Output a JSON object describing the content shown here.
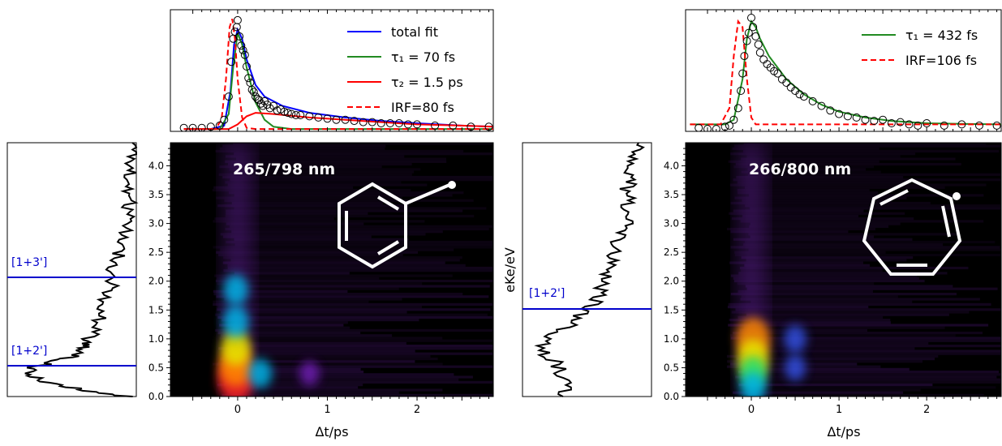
{
  "panels": [
    {
      "id": "left",
      "map_label": "265/798 nm",
      "xlabel": "Δt/ps",
      "ylabel": "",
      "molecule_icon": "benzyl-radical-structure",
      "legend": [
        "total fit",
        "τ₁ = 70 fs",
        "τ₂ = 1.5 ps",
        "IRF=80 fs"
      ],
      "marker_labels": [
        "[1+3']",
        "[1+2']"
      ]
    },
    {
      "id": "right",
      "map_label": "266/800 nm",
      "xlabel": "Δt/ps",
      "ylabel": "eKe/eV",
      "molecule_icon": "tropyl-radical-structure",
      "legend": [
        "τ₁ = 432 fs",
        "IRF=106 fs"
      ],
      "marker_labels": [
        "[1+2']"
      ]
    }
  ],
  "colors": {
    "total_fit": "#0000ff",
    "tau1": "#228b22",
    "tau2": "#ff0000",
    "irf": "#ff0000",
    "marker_line": "#0000cc",
    "map_background": "#000000"
  },
  "chart_data": [
    {
      "type": "line",
      "title": "",
      "xlabel": "",
      "ylabel": "",
      "xlim": [
        -0.75,
        2.85
      ],
      "ylim": [
        0,
        1.05
      ],
      "series": [
        {
          "name": "total fit",
          "x": [
            -0.6,
            -0.3,
            -0.15,
            -0.08,
            -0.04,
            0.0,
            0.05,
            0.1,
            0.2,
            0.3,
            0.5,
            0.8,
            1.2,
            1.6,
            2.0,
            2.5,
            2.85
          ],
          "y": [
            0.02,
            0.02,
            0.05,
            0.35,
            0.75,
            0.88,
            0.8,
            0.62,
            0.4,
            0.3,
            0.22,
            0.16,
            0.12,
            0.09,
            0.07,
            0.05,
            0.04
          ]
        },
        {
          "name": "τ₁ = 70 fs",
          "x": [
            -0.6,
            -0.2,
            -0.1,
            -0.05,
            0.0,
            0.05,
            0.1,
            0.2,
            0.3,
            0.4,
            0.6,
            1.0,
            2.85
          ],
          "y": [
            0.02,
            0.02,
            0.15,
            0.55,
            0.85,
            0.75,
            0.55,
            0.25,
            0.1,
            0.04,
            0.02,
            0.02,
            0.02
          ]
        },
        {
          "name": "τ₂ = 1.5 ps",
          "x": [
            -0.6,
            -0.1,
            0.0,
            0.1,
            0.2,
            0.4,
            0.8,
            1.2,
            1.6,
            2.0,
            2.5,
            2.85
          ],
          "y": [
            0.02,
            0.02,
            0.06,
            0.13,
            0.16,
            0.15,
            0.12,
            0.1,
            0.08,
            0.06,
            0.05,
            0.04
          ]
        },
        {
          "name": "IRF=80 fs",
          "x": [
            -0.6,
            -0.25,
            -0.18,
            -0.13,
            -0.09,
            -0.06,
            -0.03,
            0.0,
            0.05,
            0.1,
            0.2,
            2.85
          ],
          "y": [
            0.02,
            0.02,
            0.1,
            0.45,
            0.9,
            0.97,
            0.8,
            0.45,
            0.12,
            0.03,
            0.02,
            0.02
          ]
        }
      ],
      "scatter": {
        "name": "data",
        "x": [
          -0.6,
          -0.5,
          -0.4,
          -0.3,
          -0.2,
          -0.15,
          -0.1,
          -0.07,
          -0.05,
          -0.03,
          -0.01,
          0.0,
          0.02,
          0.04,
          0.06,
          0.08,
          0.1,
          0.12,
          0.14,
          0.16,
          0.18,
          0.2,
          0.22,
          0.24,
          0.26,
          0.28,
          0.3,
          0.33,
          0.36,
          0.4,
          0.44,
          0.48,
          0.52,
          0.56,
          0.6,
          0.65,
          0.7,
          0.8,
          0.9,
          1.0,
          1.1,
          1.2,
          1.3,
          1.4,
          1.5,
          1.6,
          1.7,
          1.8,
          1.9,
          2.0,
          2.2,
          2.4,
          2.6,
          2.8
        ],
        "y": [
          0.03,
          0.03,
          0.03,
          0.04,
          0.05,
          0.1,
          0.3,
          0.6,
          0.8,
          0.86,
          0.9,
          0.96,
          0.82,
          0.74,
          0.7,
          0.66,
          0.56,
          0.46,
          0.42,
          0.36,
          0.34,
          0.3,
          0.28,
          0.27,
          0.24,
          0.22,
          0.26,
          0.23,
          0.2,
          0.22,
          0.18,
          0.19,
          0.17,
          0.16,
          0.15,
          0.14,
          0.14,
          0.13,
          0.12,
          0.11,
          0.1,
          0.1,
          0.09,
          0.08,
          0.08,
          0.07,
          0.07,
          0.07,
          0.06,
          0.06,
          0.05,
          0.05,
          0.04,
          0.04
        ]
      }
    },
    {
      "type": "heatmap",
      "title": "265/798 nm",
      "xlabel": "Δt/ps",
      "ylabel": "",
      "xlim": [
        -0.75,
        2.85
      ],
      "ylim": [
        0.0,
        4.4
      ],
      "x_ticks": [
        0,
        1,
        2
      ],
      "y_ticks": [
        0.0,
        0.5,
        1.0,
        1.5,
        2.0,
        2.5,
        3.0,
        3.5,
        4.0
      ],
      "hotspots": [
        {
          "x": -0.02,
          "y": 0.3,
          "intensity": 1.0
        },
        {
          "x": -0.02,
          "y": 0.55,
          "intensity": 0.9
        },
        {
          "x": -0.02,
          "y": 0.85,
          "intensity": 0.7
        },
        {
          "x": -0.02,
          "y": 1.3,
          "intensity": 0.55
        },
        {
          "x": -0.02,
          "y": 1.85,
          "intensity": 0.5
        },
        {
          "x": 0.25,
          "y": 0.4,
          "intensity": 0.45
        },
        {
          "x": 0.8,
          "y": 0.4,
          "intensity": 0.3
        }
      ]
    },
    {
      "type": "line",
      "title": "",
      "xlabel": "",
      "ylabel": "",
      "orientation": "vertical-spectrum",
      "ylim": [
        0.0,
        4.4
      ],
      "y": [
        0.0,
        0.1,
        0.2,
        0.3,
        0.4,
        0.5,
        0.6,
        0.7,
        0.8,
        0.9,
        1.0,
        1.2,
        1.4,
        1.6,
        1.8,
        2.0,
        2.2,
        2.4,
        2.6,
        2.8,
        3.0,
        3.2,
        3.4,
        3.6,
        3.8,
        4.0,
        4.2,
        4.4
      ],
      "intensity": [
        0.95,
        0.6,
        0.4,
        0.25,
        0.15,
        0.2,
        0.35,
        0.5,
        0.55,
        0.6,
        0.62,
        0.7,
        0.72,
        0.75,
        0.78,
        0.82,
        0.82,
        0.85,
        0.88,
        0.9,
        0.92,
        0.93,
        0.94,
        0.95,
        0.96,
        0.96,
        0.97,
        0.97
      ],
      "markers": [
        {
          "label": "[1+3']",
          "y": 2.08
        },
        {
          "label": "[1+2']",
          "y": 0.53
        }
      ]
    },
    {
      "type": "line",
      "title": "",
      "xlabel": "",
      "ylabel": "",
      "xlim": [
        -0.75,
        2.85
      ],
      "ylim": [
        0,
        1.05
      ],
      "series": [
        {
          "name": "τ₁ = 432 fs",
          "x": [
            -0.7,
            -0.3,
            -0.2,
            -0.1,
            -0.05,
            0.0,
            0.05,
            0.1,
            0.2,
            0.4,
            0.6,
            0.8,
            1.0,
            1.3,
            1.6,
            2.0,
            2.4,
            2.85
          ],
          "y": [
            0.06,
            0.06,
            0.1,
            0.45,
            0.8,
            0.95,
            0.9,
            0.8,
            0.65,
            0.45,
            0.32,
            0.23,
            0.17,
            0.12,
            0.09,
            0.07,
            0.065,
            0.06
          ]
        },
        {
          "name": "IRF=106 fs",
          "x": [
            -0.7,
            -0.35,
            -0.25,
            -0.2,
            -0.15,
            -0.1,
            -0.05,
            0.0,
            0.05,
            2.85
          ],
          "y": [
            0.06,
            0.06,
            0.2,
            0.65,
            0.95,
            0.9,
            0.45,
            0.12,
            0.06,
            0.06
          ]
        }
      ],
      "scatter": {
        "name": "data",
        "x": [
          -0.6,
          -0.5,
          -0.4,
          -0.3,
          -0.25,
          -0.2,
          -0.15,
          -0.12,
          -0.1,
          -0.08,
          -0.05,
          -0.03,
          0.0,
          0.02,
          0.05,
          0.08,
          0.1,
          0.14,
          0.18,
          0.22,
          0.26,
          0.3,
          0.35,
          0.4,
          0.45,
          0.5,
          0.55,
          0.6,
          0.7,
          0.8,
          0.9,
          1.0,
          1.1,
          1.2,
          1.3,
          1.4,
          1.5,
          1.6,
          1.7,
          1.8,
          1.9,
          2.0,
          2.2,
          2.4,
          2.6,
          2.8
        ],
        "y": [
          0.03,
          0.02,
          0.02,
          0.04,
          0.05,
          0.1,
          0.2,
          0.35,
          0.5,
          0.65,
          0.78,
          0.85,
          0.98,
          0.9,
          0.82,
          0.75,
          0.68,
          0.62,
          0.58,
          0.55,
          0.52,
          0.5,
          0.45,
          0.42,
          0.38,
          0.35,
          0.32,
          0.3,
          0.26,
          0.22,
          0.18,
          0.15,
          0.13,
          0.12,
          0.1,
          0.09,
          0.1,
          0.07,
          0.08,
          0.06,
          0.05,
          0.07,
          0.05,
          0.06,
          0.05,
          0.05
        ]
      }
    },
    {
      "type": "heatmap",
      "title": "266/800 nm",
      "xlabel": "Δt/ps",
      "ylabel": "eKe/eV",
      "xlim": [
        -0.75,
        2.85
      ],
      "ylim": [
        0.0,
        4.4
      ],
      "x_ticks": [
        0,
        1,
        2
      ],
      "y_ticks": [
        0.0,
        0.5,
        1.0,
        1.5,
        2.0,
        2.5,
        3.0,
        3.5,
        4.0
      ],
      "hotspots": [
        {
          "x": 0.02,
          "y": 1.0,
          "intensity": 0.9
        },
        {
          "x": 0.02,
          "y": 0.65,
          "intensity": 0.8
        },
        {
          "x": 0.02,
          "y": 0.4,
          "intensity": 0.6
        },
        {
          "x": 0.02,
          "y": 0.15,
          "intensity": 0.5
        },
        {
          "x": 0.5,
          "y": 1.0,
          "intensity": 0.4
        },
        {
          "x": 0.5,
          "y": 0.5,
          "intensity": 0.35
        }
      ]
    },
    {
      "type": "line",
      "title": "",
      "xlabel": "",
      "ylabel": "",
      "orientation": "vertical-spectrum",
      "ylim": [
        0.0,
        4.4
      ],
      "y": [
        0.0,
        0.2,
        0.4,
        0.6,
        0.8,
        1.0,
        1.2,
        1.4,
        1.6,
        1.8,
        2.0,
        2.2,
        2.4,
        2.6,
        2.8,
        3.0,
        3.2,
        3.4,
        3.6,
        3.8,
        4.0,
        4.2,
        4.4
      ],
      "intensity": [
        0.3,
        0.35,
        0.3,
        0.25,
        0.15,
        0.2,
        0.35,
        0.45,
        0.55,
        0.6,
        0.65,
        0.68,
        0.72,
        0.7,
        0.75,
        0.8,
        0.78,
        0.82,
        0.8,
        0.85,
        0.82,
        0.88,
        0.9
      ],
      "markers": [
        {
          "label": "[1+2']",
          "y": 1.52
        }
      ]
    }
  ]
}
